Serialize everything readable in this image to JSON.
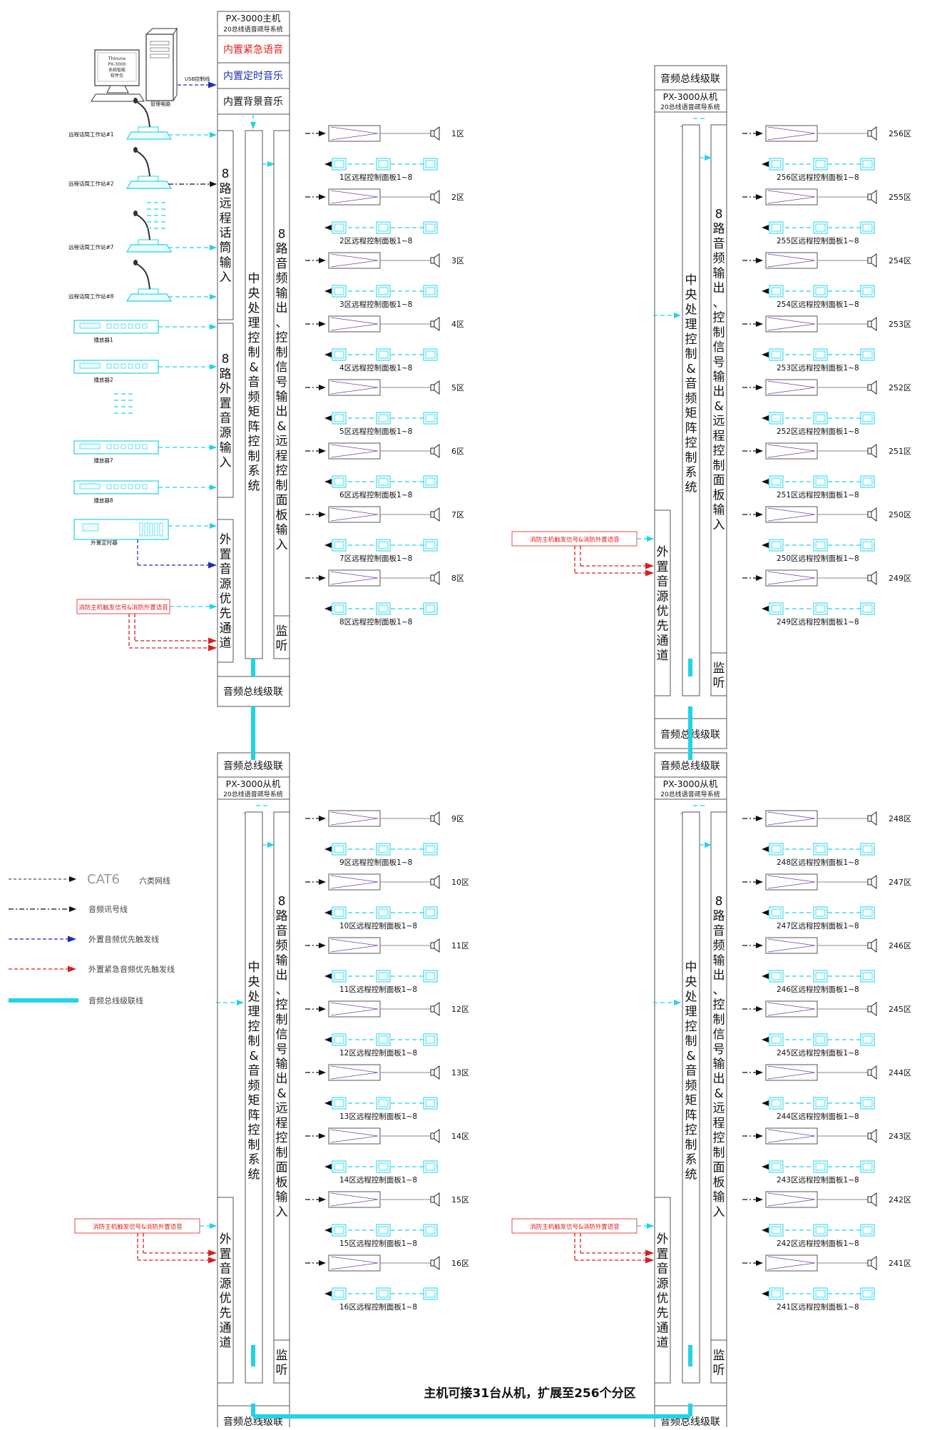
{
  "colors": {
    "cyan": "#22d3e6",
    "black": "#111111",
    "blue": "#1a2fb5",
    "red": "#d42020",
    "red_text": "#e0201c",
    "purple": "#7a3ea0",
    "box": "#555555",
    "grey_line": "#888888"
  },
  "host": {
    "title": "PX-3000主机",
    "subtitle": "20总线语音疏导系统",
    "builtin_emergency": "内置紧急语音",
    "builtin_timer": "内置定时音乐",
    "builtin_bgm": "内置背景音乐",
    "pc_screen_lines": [
      "Thinuna",
      "PX-3000",
      "系统智能",
      "软件包"
    ],
    "pc_label": "管理电脑",
    "usb_label": "USB控制线",
    "mics": [
      "远程话筒工作站#1",
      "远程话筒工作站#2",
      "远程话筒工作站#7",
      "远程话筒工作站#8"
    ],
    "players": [
      "播放器1",
      "播放器2",
      "播放器7",
      "播放器8"
    ],
    "timer": "外置定时器"
  },
  "fire_source": "消防主机触发信号&消防外置语音",
  "columns": {
    "mic_input": "8路远程话筒输入",
    "ext_source_input": "8路外置音源输入",
    "cpu": "中央处理控制&音频矩阵控制系统",
    "audio_out": "8路音频输出、控制信号输出&远程控制面板输入",
    "priority": "外置音源优先通道",
    "monitor": "监听"
  },
  "slave": {
    "cascade_label": "音频总线级联",
    "title": "PX-3000从机",
    "subtitle": "20总线语音疏导系统"
  },
  "zones": {
    "tl": [
      {
        "zone": "1区",
        "panel": "1区远程控制面板1~8"
      },
      {
        "zone": "2区",
        "panel": "2区远程控制面板1~8"
      },
      {
        "zone": "3区",
        "panel": "3区远程控制面板1~8"
      },
      {
        "zone": "4区",
        "panel": "4区远程控制面板1~8"
      },
      {
        "zone": "5区",
        "panel": "5区远程控制面板1~8"
      },
      {
        "zone": "6区",
        "panel": "6区远程控制面板1~8"
      },
      {
        "zone": "7区",
        "panel": "7区远程控制面板1~8"
      },
      {
        "zone": "8区",
        "panel": "8区远程控制面板1~8"
      }
    ],
    "tr": [
      {
        "zone": "256区",
        "panel": "256区远程控制面板1~8"
      },
      {
        "zone": "255区",
        "panel": "255区远程控制面板1~8"
      },
      {
        "zone": "254区",
        "panel": "254区远程控制面板1~8"
      },
      {
        "zone": "253区",
        "panel": "253区远程控制面板1~8"
      },
      {
        "zone": "252区",
        "panel": "252区远程控制面板1~8"
      },
      {
        "zone": "251区",
        "panel": "251区远程控制面板1~8"
      },
      {
        "zone": "250区",
        "panel": "250区远程控制面板1~8"
      },
      {
        "zone": "249区",
        "panel": "249区远程控制面板1~8"
      }
    ],
    "bl": [
      {
        "zone": "9区",
        "panel": "9区远程控制面板1~8"
      },
      {
        "zone": "10区",
        "panel": "10区远程控制面板1~8"
      },
      {
        "zone": "11区",
        "panel": "11区远程控制面板1~8"
      },
      {
        "zone": "12区",
        "panel": "12区远程控制面板1~8"
      },
      {
        "zone": "13区",
        "panel": "13区远程控制面板1~8"
      },
      {
        "zone": "14区",
        "panel": "14区远程控制面板1~8"
      },
      {
        "zone": "15区",
        "panel": "15区远程控制面板1~8"
      },
      {
        "zone": "16区",
        "panel": "16区远程控制面板1~8"
      }
    ],
    "br": [
      {
        "zone": "248区",
        "panel": "248区远程控制面板1~8"
      },
      {
        "zone": "247区",
        "panel": "247区远程控制面板1~8"
      },
      {
        "zone": "246区",
        "panel": "246区远程控制面板1~8"
      },
      {
        "zone": "245区",
        "panel": "245区远程控制面板1~8"
      },
      {
        "zone": "244区",
        "panel": "244区远程控制面板1~8"
      },
      {
        "zone": "243区",
        "panel": "243区远程控制面板1~8"
      },
      {
        "zone": "242区",
        "panel": "242区远程控制面板1~8"
      },
      {
        "zone": "241区",
        "panel": "241区远程控制面板1~8"
      }
    ]
  },
  "legend": [
    {
      "label": "CAT6",
      "extra": "六类网线",
      "style": "cat6"
    },
    {
      "label": "音频讯号线",
      "style": "audio"
    },
    {
      "label": "外置音频优先触发线",
      "style": "blue"
    },
    {
      "label": "外置紧急音频优先触发线",
      "style": "red"
    },
    {
      "label": "音频总线级联线",
      "style": "bus"
    }
  ],
  "footer": "主机可接31台从机，扩展至256个分区"
}
